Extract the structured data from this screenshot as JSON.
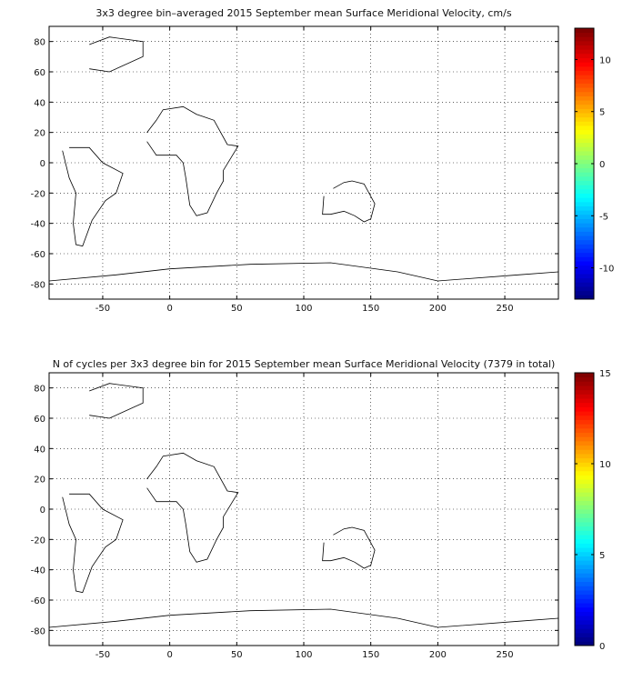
{
  "chart_data": [
    {
      "type": "heatmap",
      "title": "3x3 degree bin–averaged 2015 September mean Surface Meridional Velocity, cm/s",
      "x_ticks": [
        -50,
        0,
        50,
        100,
        150,
        200,
        250
      ],
      "y_ticks": [
        80,
        60,
        40,
        20,
        0,
        -20,
        -40,
        -60,
        -80
      ],
      "xlim": [
        -90,
        290
      ],
      "ylim": [
        -90,
        90
      ],
      "colorbar": {
        "min": -13,
        "max": 13,
        "ticks": [
          10,
          5,
          0,
          -5,
          -10
        ],
        "colormap": "jet"
      },
      "grid": true
    },
    {
      "type": "heatmap",
      "title": "N of cycles per 3x3 degree bin for 2015 September mean Surface Meridional Velocity (7379 in total)",
      "x_ticks": [
        -50,
        0,
        50,
        100,
        150,
        200,
        250
      ],
      "y_ticks": [
        80,
        60,
        40,
        20,
        0,
        -20,
        -40,
        -60,
        -80
      ],
      "xlim": [
        -90,
        290
      ],
      "ylim": [
        -90,
        90
      ],
      "colorbar": {
        "min": 0,
        "max": 15,
        "ticks": [
          15,
          10,
          5,
          0
        ],
        "colormap": "jet"
      },
      "grid": true
    }
  ]
}
